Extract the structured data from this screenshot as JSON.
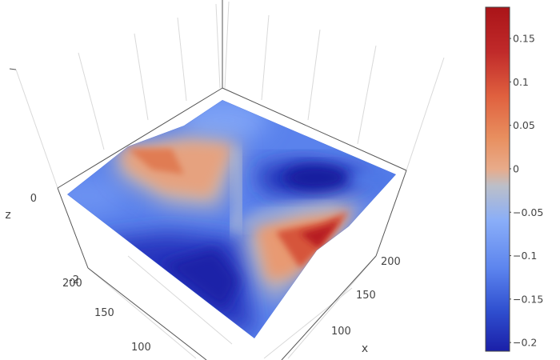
{
  "chart_data": {
    "type": "surface",
    "title": "",
    "axes": {
      "x": {
        "title": "x",
        "tick_labels": [
          "100",
          "150",
          "200"
        ]
      },
      "y": {
        "title": "",
        "tick_labels": [
          "100",
          "150",
          "200"
        ]
      },
      "z": {
        "title": "z",
        "tick_labels": [
          "0",
          "-2"
        ]
      }
    },
    "colorbar": {
      "range": [
        -0.21,
        0.186
      ],
      "tick_labels": [
        "0.15",
        "0.1",
        "0.05",
        "0",
        "−0.05",
        "−0.1",
        "−0.15",
        "−0.2"
      ],
      "tick_values": [
        0.15,
        0.1,
        0.05,
        0,
        -0.05,
        -0.1,
        -0.15,
        -0.2
      ],
      "colorscale": [
        "#1a1fa8",
        "#3050d0",
        "#5c84ee",
        "#8aaef8",
        "#bbbfc9",
        "#e8ab8a",
        "#e88f5f",
        "#e0613f",
        "#c02a2a",
        "#aa1418"
      ]
    },
    "grid": true,
    "legend": "none",
    "surface_colors_by_region": {
      "top_back_corner": -0.09,
      "left_corner": -0.07,
      "bottom_corner": -0.1,
      "right_corner": -0.08,
      "left_warm_lobe_peak": 0.08,
      "right_warm_lobe_peak": 0.18,
      "center_dark_valley": -0.21
    }
  }
}
